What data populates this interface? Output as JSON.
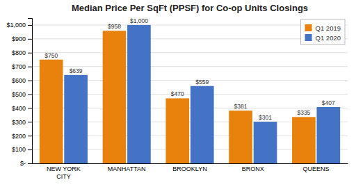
{
  "chart_data": {
    "type": "bar",
    "title": "Median Price Per SqFt (PPSF) for Co-op Units Closings",
    "categories": [
      "NEW YORK\nCITY",
      "MANHATTAN",
      "BROOKLYN",
      "BRONX",
      "QUEENS"
    ],
    "series": [
      {
        "name": "Q1 2019",
        "color": "#E8820C",
        "values": [
          750,
          958,
          470,
          381,
          335
        ],
        "value_labels": [
          "$750",
          "$958",
          "$470",
          "$381",
          "$335"
        ]
      },
      {
        "name": "Q1 2020",
        "color": "#4472C4",
        "values": [
          639,
          1000,
          559,
          301,
          407
        ],
        "value_labels": [
          "$639",
          "$1,000",
          "$559",
          "$301",
          "$407"
        ]
      }
    ],
    "ylim": [
      0,
      1050
    ],
    "yticks": [
      {
        "value": 0,
        "label": "$-"
      },
      {
        "value": 100,
        "label": "$100"
      },
      {
        "value": 200,
        "label": "$200"
      },
      {
        "value": 300,
        "label": "$300"
      },
      {
        "value": 400,
        "label": "$400"
      },
      {
        "value": 500,
        "label": "$500"
      },
      {
        "value": 600,
        "label": "$600"
      },
      {
        "value": 700,
        "label": "$700"
      },
      {
        "value": 800,
        "label": "$800"
      },
      {
        "value": 900,
        "label": "$900"
      },
      {
        "value": 1000,
        "label": "$1,000"
      }
    ],
    "grid": true,
    "legend": "upper right",
    "data_labels": true
  }
}
